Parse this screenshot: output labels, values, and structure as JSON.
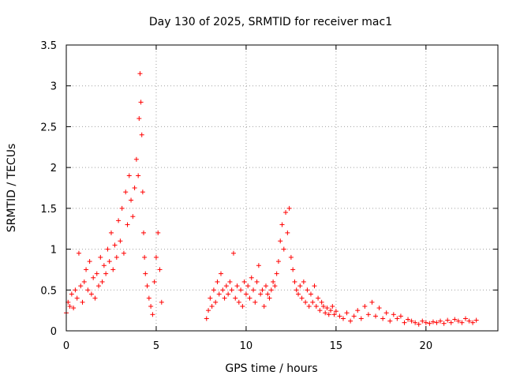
{
  "chart_data": {
    "type": "scatter",
    "title": "Day 130 of 2025, SRMTID for receiver mac1",
    "xlabel": "GPS time / hours",
    "ylabel": "SRMTID / TECUs",
    "xlim": [
      0,
      24
    ],
    "ylim": [
      0,
      3.5
    ],
    "xticks": [
      0,
      5,
      10,
      15,
      20
    ],
    "xtick_labels": [
      "0",
      "5",
      "10",
      "15",
      "20"
    ],
    "yticks": [
      0,
      0.5,
      1,
      1.5,
      2,
      2.5,
      3,
      3.5
    ],
    "ytick_labels": [
      "0",
      "0.5",
      "1",
      "1.5",
      "2",
      "2.5",
      "3",
      "3.5"
    ],
    "grid": true,
    "marker": "+",
    "color": "#ff0000",
    "series": [
      {
        "name": "SRMTID",
        "x": [
          0.0,
          0.1,
          0.2,
          0.3,
          0.4,
          0.5,
          0.6,
          0.7,
          0.8,
          0.9,
          1.0,
          1.1,
          1.2,
          1.3,
          1.4,
          1.5,
          1.6,
          1.7,
          1.8,
          1.9,
          2.0,
          2.1,
          2.2,
          2.3,
          2.4,
          2.5,
          2.6,
          2.7,
          2.8,
          2.9,
          3.0,
          3.1,
          3.2,
          3.3,
          3.4,
          3.5,
          3.6,
          3.7,
          3.8,
          3.9,
          4.0,
          4.05,
          4.1,
          4.15,
          4.2,
          4.25,
          4.3,
          4.35,
          4.4,
          4.5,
          4.6,
          4.7,
          4.8,
          4.9,
          5.0,
          5.1,
          5.2,
          5.3,
          7.8,
          7.9,
          8.0,
          8.1,
          8.2,
          8.3,
          8.4,
          8.5,
          8.6,
          8.7,
          8.8,
          8.9,
          9.0,
          9.1,
          9.2,
          9.3,
          9.4,
          9.5,
          9.6,
          9.7,
          9.8,
          9.9,
          10.0,
          10.1,
          10.2,
          10.3,
          10.4,
          10.5,
          10.6,
          10.7,
          10.8,
          10.9,
          11.0,
          11.1,
          11.2,
          11.3,
          11.4,
          11.5,
          11.6,
          11.7,
          11.8,
          11.9,
          12.0,
          12.1,
          12.2,
          12.3,
          12.4,
          12.5,
          12.6,
          12.7,
          12.8,
          12.9,
          13.0,
          13.1,
          13.2,
          13.3,
          13.4,
          13.5,
          13.6,
          13.7,
          13.8,
          13.9,
          14.0,
          14.1,
          14.2,
          14.3,
          14.4,
          14.5,
          14.6,
          14.7,
          14.8,
          14.9,
          15.0,
          15.2,
          15.4,
          15.6,
          15.8,
          16.0,
          16.2,
          16.4,
          16.6,
          16.8,
          17.0,
          17.2,
          17.4,
          17.6,
          17.8,
          18.0,
          18.2,
          18.4,
          18.6,
          18.8,
          19.0,
          19.2,
          19.4,
          19.6,
          19.8,
          20.0,
          20.2,
          20.4,
          20.6,
          20.8,
          21.0,
          21.2,
          21.4,
          21.6,
          21.8,
          22.0,
          22.2,
          22.4,
          22.6,
          22.8
        ],
        "y": [
          0.22,
          0.35,
          0.3,
          0.45,
          0.28,
          0.5,
          0.4,
          0.95,
          0.55,
          0.35,
          0.6,
          0.75,
          0.5,
          0.85,
          0.45,
          0.65,
          0.4,
          0.7,
          0.55,
          0.9,
          0.6,
          0.8,
          0.7,
          1.0,
          0.85,
          1.2,
          0.75,
          1.05,
          0.9,
          1.35,
          1.1,
          1.5,
          0.95,
          1.7,
          1.3,
          1.9,
          1.6,
          1.4,
          1.75,
          2.1,
          1.9,
          2.6,
          3.15,
          2.8,
          2.4,
          1.7,
          1.2,
          0.9,
          0.7,
          0.55,
          0.4,
          0.3,
          0.2,
          0.6,
          0.9,
          1.2,
          0.75,
          0.35,
          0.15,
          0.25,
          0.4,
          0.3,
          0.5,
          0.35,
          0.6,
          0.45,
          0.7,
          0.5,
          0.4,
          0.55,
          0.45,
          0.6,
          0.5,
          0.95,
          0.4,
          0.55,
          0.35,
          0.5,
          0.3,
          0.6,
          0.45,
          0.55,
          0.4,
          0.65,
          0.5,
          0.35,
          0.6,
          0.8,
          0.45,
          0.5,
          0.3,
          0.55,
          0.45,
          0.4,
          0.5,
          0.6,
          0.55,
          0.7,
          0.85,
          1.1,
          1.3,
          1.0,
          1.45,
          1.2,
          1.5,
          0.9,
          0.75,
          0.6,
          0.5,
          0.45,
          0.55,
          0.4,
          0.6,
          0.35,
          0.5,
          0.3,
          0.45,
          0.35,
          0.55,
          0.3,
          0.4,
          0.25,
          0.35,
          0.3,
          0.22,
          0.28,
          0.2,
          0.25,
          0.3,
          0.2,
          0.24,
          0.18,
          0.15,
          0.22,
          0.12,
          0.18,
          0.25,
          0.15,
          0.3,
          0.2,
          0.35,
          0.18,
          0.28,
          0.15,
          0.22,
          0.12,
          0.2,
          0.15,
          0.18,
          0.1,
          0.14,
          0.12,
          0.1,
          0.08,
          0.12,
          0.1,
          0.09,
          0.11,
          0.1,
          0.12,
          0.09,
          0.13,
          0.1,
          0.14,
          0.12,
          0.1,
          0.15,
          0.12,
          0.1,
          0.13
        ]
      }
    ]
  }
}
